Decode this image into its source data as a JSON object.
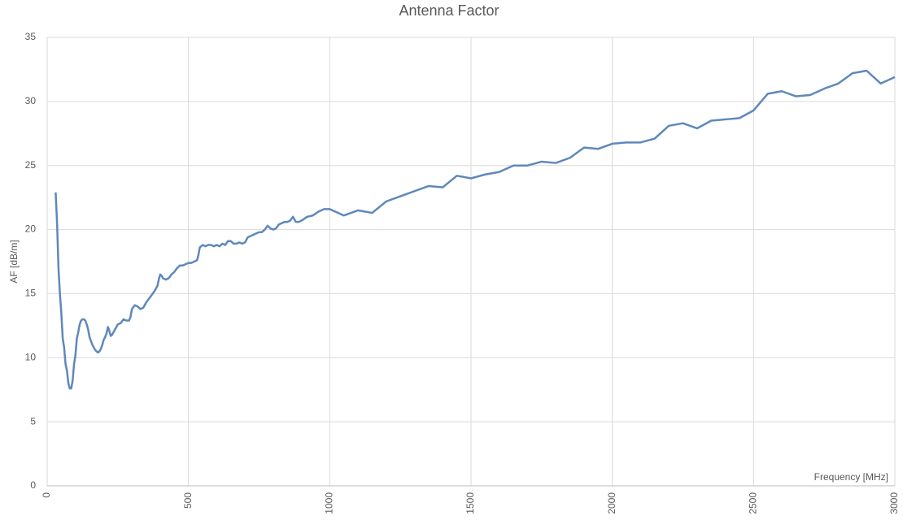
{
  "chart_data": {
    "type": "line",
    "title": "Antenna Factor",
    "x_label": "Frequency [MHz]",
    "y_label": "AF [dB/m]",
    "xlim": [
      0,
      3000
    ],
    "xticks": [
      0,
      500,
      1000,
      1500,
      2000,
      2500,
      3000
    ],
    "ylim": [
      0,
      35
    ],
    "yticks": [
      0,
      5,
      10,
      15,
      20,
      25,
      30,
      35
    ],
    "grid": true,
    "x": [
      30,
      35,
      40,
      45,
      50,
      55,
      60,
      65,
      70,
      75,
      80,
      85,
      90,
      95,
      100,
      105,
      110,
      115,
      120,
      125,
      130,
      135,
      140,
      145,
      150,
      155,
      160,
      165,
      170,
      175,
      180,
      185,
      190,
      195,
      200,
      205,
      210,
      215,
      220,
      225,
      230,
      240,
      250,
      260,
      270,
      280,
      290,
      295,
      300,
      310,
      320,
      330,
      340,
      350,
      360,
      370,
      380,
      390,
      395,
      400,
      405,
      410,
      420,
      430,
      440,
      450,
      460,
      470,
      480,
      490,
      500,
      510,
      520,
      530,
      535,
      540,
      550,
      560,
      570,
      580,
      590,
      600,
      610,
      620,
      630,
      640,
      650,
      660,
      670,
      680,
      690,
      700,
      710,
      720,
      730,
      740,
      750,
      760,
      770,
      780,
      790,
      800,
      810,
      820,
      830,
      840,
      850,
      860,
      870,
      880,
      890,
      900,
      920,
      940,
      960,
      980,
      1000,
      1050,
      1100,
      1150,
      1200,
      1250,
      1300,
      1350,
      1400,
      1450,
      1500,
      1550,
      1600,
      1650,
      1700,
      1750,
      1800,
      1850,
      1900,
      1950,
      2000,
      2050,
      2100,
      2150,
      2200,
      2250,
      2300,
      2350,
      2400,
      2450,
      2500,
      2550,
      2600,
      2650,
      2700,
      2750,
      2800,
      2850,
      2900,
      2950,
      3000
    ],
    "series": [
      {
        "name": "AF",
        "color": "#5f88bb",
        "values": [
          22.9,
          20.5,
          17,
          15,
          13.5,
          11.5,
          10.8,
          9.5,
          9,
          8,
          7.6,
          7.6,
          8.2,
          9.5,
          10.2,
          11.5,
          12,
          12.6,
          12.9,
          13,
          13,
          12.9,
          12.6,
          12.2,
          11.6,
          11.3,
          11,
          10.8,
          10.6,
          10.5,
          10.4,
          10.5,
          10.7,
          11,
          11.4,
          11.6,
          11.9,
          12.4,
          12.1,
          11.7,
          11.8,
          12.2,
          12.6,
          12.7,
          13,
          12.9,
          12.9,
          13.2,
          13.8,
          14.1,
          14,
          13.8,
          13.9,
          14.3,
          14.6,
          14.9,
          15.2,
          15.6,
          16.1,
          16.5,
          16.4,
          16.2,
          16.1,
          16.2,
          16.5,
          16.7,
          17,
          17.2,
          17.2,
          17.3,
          17.4,
          17.4,
          17.5,
          17.6,
          18,
          18.6,
          18.8,
          18.7,
          18.8,
          18.8,
          18.7,
          18.8,
          18.7,
          18.9,
          18.8,
          19.1,
          19.1,
          18.9,
          18.9,
          19,
          18.9,
          19,
          19.4,
          19.5,
          19.6,
          19.7,
          19.8,
          19.8,
          20,
          20.3,
          20.1,
          20,
          20.1,
          20.4,
          20.5,
          20.6,
          20.6,
          20.7,
          21,
          20.6,
          20.6,
          20.7,
          21,
          21.1,
          21.4,
          21.6,
          21.6,
          21.1,
          21.5,
          21.3,
          22.2,
          22.6,
          23,
          23.4,
          23.3,
          24.2,
          24,
          24.3,
          24.5,
          25,
          25,
          25.3,
          25.2,
          25.6,
          26.4,
          26.3,
          26.7,
          26.8,
          26.8,
          27.1,
          28.1,
          28.3,
          27.9,
          28.5,
          28.6,
          28.7,
          29.3,
          30.6,
          30.8,
          30.4,
          30.5,
          31,
          31.4,
          32.2,
          32.4,
          31.4,
          31.9
        ]
      }
    ]
  }
}
